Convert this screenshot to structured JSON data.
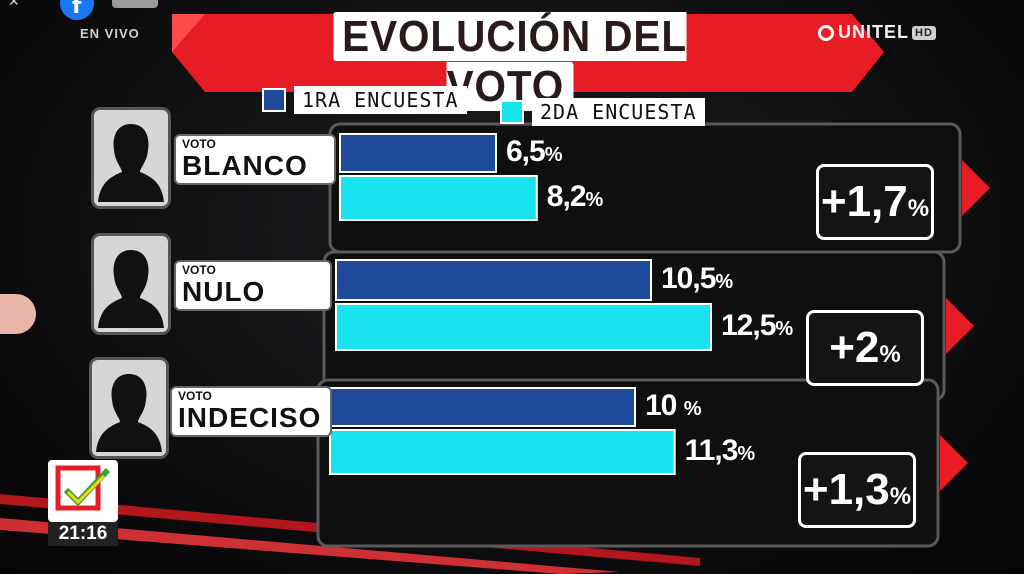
{
  "header": {
    "live_label": "EN VIVO",
    "title": "EVOLUCIÓN DEL VOTO",
    "brand": "UNITEL",
    "brand_badge": "HD",
    "clock_time": "21:16"
  },
  "colors": {
    "series1": "#1f4a9c",
    "series2": "#19e3ee",
    "accent_red": "#e81c24"
  },
  "icons": [
    "facebook-icon",
    "close-icon",
    "unitel-logo-icon",
    "person-silhouette-icon",
    "checkmark-logo-icon"
  ],
  "chart_data": {
    "type": "bar",
    "orientation": "horizontal",
    "title": "EVOLUCIÓN DEL VOTO",
    "categories": [
      {
        "small": "VOTO",
        "big": "BLANCO"
      },
      {
        "small": "VOTO",
        "big": "NULO"
      },
      {
        "small": "VOTO",
        "big": "INDECISO"
      }
    ],
    "series": [
      {
        "name": "1RA ENCUESTA",
        "values": [
          6.5,
          10.5,
          10
        ]
      },
      {
        "name": "2DA ENCUESTA",
        "values": [
          8.2,
          12.5,
          11.3
        ]
      }
    ],
    "value_labels": [
      [
        "6,5",
        "10,5",
        "10 "
      ],
      [
        "8,2",
        "12,5",
        "11,3"
      ]
    ],
    "unit": "%",
    "differences": [
      "+1,7",
      "+2",
      "+1,3"
    ],
    "legend_position": "top"
  }
}
